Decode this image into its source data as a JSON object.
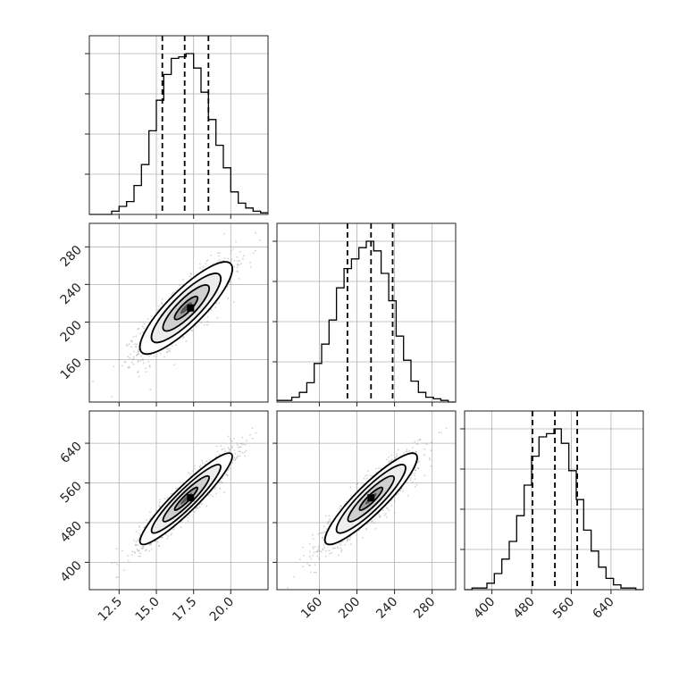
{
  "chart_data": {
    "type": "corner",
    "title": "",
    "parameters": [
      {
        "axis_range": [
          10.5,
          22.5
        ],
        "ticks": [
          12.5,
          15.0,
          17.5,
          20.0
        ],
        "tick_labels": [
          "12.5",
          "15.0",
          "17.5",
          "20.0"
        ]
      },
      {
        "axis_range": [
          115,
          305
        ],
        "ticks": [
          160,
          200,
          240,
          280
        ],
        "tick_labels": [
          "160",
          "200",
          "240",
          "280"
        ]
      },
      {
        "axis_range": [
          345,
          705
        ],
        "ticks": [
          400,
          480,
          560,
          640
        ],
        "tick_labels": [
          "400",
          "480",
          "560",
          "640"
        ]
      }
    ],
    "histograms": [
      {
        "parameter": 0,
        "bin_edges": [
          10.5,
          11.0,
          11.5,
          12.0,
          12.5,
          13.0,
          13.5,
          14.0,
          14.5,
          15.0,
          15.5,
          16.0,
          16.5,
          17.0,
          17.5,
          18.0,
          18.5,
          19.0,
          19.5,
          20.0,
          20.5,
          21.0,
          21.5,
          22.0,
          22.5
        ],
        "counts": [
          0,
          0,
          0,
          0.02,
          0.05,
          0.08,
          0.18,
          0.31,
          0.52,
          0.71,
          0.87,
          0.97,
          0.98,
          1.0,
          0.91,
          0.76,
          0.59,
          0.43,
          0.29,
          0.14,
          0.07,
          0.04,
          0.02,
          0.01
        ],
        "quantile_lines": [
          15.4,
          16.9,
          18.5
        ]
      },
      {
        "parameter": 1,
        "bin_edges": [
          115,
          122.9,
          130.8,
          138.8,
          146.7,
          154.6,
          162.5,
          170.4,
          178.3,
          186.3,
          194.2,
          202.1,
          210.0,
          217.9,
          225.8,
          233.8,
          241.7,
          249.6,
          257.5,
          265.4,
          273.3,
          281.3,
          289.2,
          297.1,
          305
        ],
        "counts": [
          0.01,
          0.01,
          0.03,
          0.06,
          0.12,
          0.24,
          0.36,
          0.51,
          0.71,
          0.83,
          0.89,
          0.96,
          1.0,
          0.94,
          0.8,
          0.63,
          0.41,
          0.26,
          0.13,
          0.06,
          0.03,
          0.02,
          0.01,
          0
        ],
        "quantile_lines": [
          190,
          215,
          238
        ]
      },
      {
        "parameter": 2,
        "bin_edges": [
          345,
          360,
          375,
          390,
          405,
          420,
          435,
          450,
          465,
          480,
          495,
          510,
          525,
          540,
          555,
          570,
          585,
          600,
          615,
          630,
          645,
          660,
          675,
          690,
          705
        ],
        "counts": [
          0,
          0.01,
          0.01,
          0.04,
          0.1,
          0.19,
          0.3,
          0.46,
          0.65,
          0.83,
          0.95,
          0.97,
          1.0,
          0.91,
          0.74,
          0.56,
          0.37,
          0.24,
          0.14,
          0.07,
          0.03,
          0.01,
          0.01,
          0
        ],
        "quantile_lines": [
          482,
          527,
          572
        ]
      }
    ],
    "joint_densities": [
      {
        "x_parameter": 0,
        "y_parameter": 1,
        "mean": [
          17.0,
          215.0
        ],
        "std": [
          1.55,
          24.5
        ],
        "correlation": 0.85,
        "peak": [
          17.3,
          215.0
        ]
      },
      {
        "x_parameter": 0,
        "y_parameter": 2,
        "mean": [
          17.0,
          528.0
        ],
        "std": [
          1.55,
          46.0
        ],
        "correlation": 0.93,
        "peak": [
          17.3,
          530.0
        ]
      },
      {
        "x_parameter": 1,
        "y_parameter": 2,
        "mean": [
          215.0,
          528.0
        ],
        "std": [
          24.5,
          46.0
        ],
        "correlation": 0.9,
        "peak": [
          215.0,
          530.0
        ]
      }
    ],
    "contour_levels_sigma": [
      0.5,
      1.0,
      1.5,
      2.0
    ],
    "grid": true,
    "colors": {
      "ink": "#000000",
      "points": "#9a9a9a",
      "grid": "#b0b0b0",
      "quantile_line": "#000000"
    }
  }
}
